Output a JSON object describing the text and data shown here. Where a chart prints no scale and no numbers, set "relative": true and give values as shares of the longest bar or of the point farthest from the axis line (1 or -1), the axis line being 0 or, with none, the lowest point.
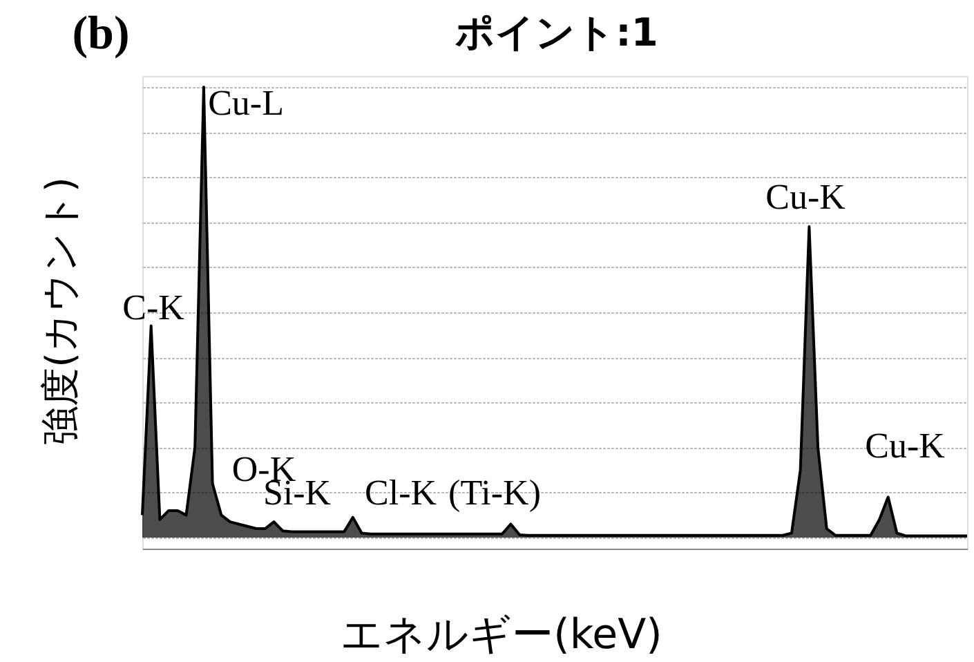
{
  "chart_data": {
    "type": "area",
    "title": "(b)",
    "subtitle": "ポイント:1",
    "xlabel": "エネルギー(keV)",
    "ylabel": "強度(カウント)",
    "relative": true,
    "grid": "y",
    "categories": [
      null,
      null,
      null,
      null,
      null,
      null,
      null,
      null,
      null,
      null,
      null,
      null,
      null,
      null,
      null,
      null,
      null,
      null,
      null,
      null,
      null,
      null,
      null,
      null,
      null,
      null,
      null,
      null,
      null,
      null,
      null,
      null,
      null,
      null,
      null,
      null,
      null,
      null,
      null,
      null,
      null,
      null,
      null,
      null,
      null,
      null,
      null,
      null,
      null,
      null,
      null,
      null,
      null,
      null,
      null,
      null,
      null,
      null,
      null,
      null,
      null,
      null,
      null,
      null,
      null,
      null,
      null,
      null,
      null,
      null,
      null,
      null,
      null,
      null,
      null,
      null,
      null,
      null,
      null,
      null,
      null,
      null,
      null,
      null,
      null,
      null,
      null,
      null,
      null,
      null,
      null,
      null,
      null,
      null,
      null
    ],
    "series": [
      {
        "color": "#000000",
        "values": [
          0.05,
          0.47,
          0.04,
          0.06,
          0.06,
          0.05,
          0.2,
          1.0,
          0.12,
          0.05,
          0.035,
          0.03,
          0.025,
          0.02,
          0.02,
          0.035,
          0.015,
          0.013,
          0.013,
          0.013,
          0.013,
          0.013,
          0.013,
          0.013,
          0.045,
          0.01,
          0.008,
          0.008,
          0.008,
          0.008,
          0.008,
          0.008,
          0.008,
          0.008,
          0.008,
          0.008,
          0.008,
          0.008,
          0.008,
          0.008,
          0.008,
          0.008,
          0.03,
          0.006,
          0.005,
          0.005,
          0.005,
          0.005,
          0.005,
          0.005,
          0.005,
          0.005,
          0.005,
          0.005,
          0.005,
          0.005,
          0.005,
          0.005,
          0.005,
          0.005,
          0.005,
          0.005,
          0.005,
          0.005,
          0.005,
          0.005,
          0.005,
          0.005,
          0.005,
          0.005,
          0.005,
          0.005,
          0.005,
          0.005,
          0.01,
          0.15,
          0.69,
          0.2,
          0.02,
          0.005,
          0.005,
          0.005,
          0.005,
          0.005,
          0.04,
          0.09,
          0.01,
          0.004,
          0.004,
          0.004,
          0.004,
          0.004,
          0.004,
          0.004,
          0.004
        ]
      }
    ],
    "annotations": [
      "Cu-L",
      "C-K",
      "O-K",
      "Si-K",
      "Cl-K",
      "(Ti-K)",
      "Cu-K",
      "Cu-K"
    ]
  }
}
